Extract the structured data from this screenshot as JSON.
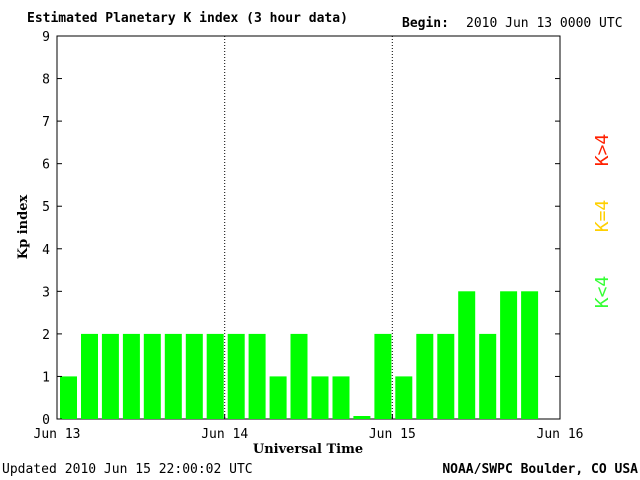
{
  "header": {
    "title": "Estimated Planetary K index (3 hour data)",
    "begin_label": "Begin:",
    "begin_value": "2010 Jun 13 0000 UTC"
  },
  "footer": {
    "updated_label": "Updated",
    "updated_value": "2010 Jun 15 22:00:02 UTC",
    "credit": "NOAA/SWPC Boulder, CO USA"
  },
  "legend": {
    "items": [
      {
        "label": "K>4",
        "color": "#ff2000"
      },
      {
        "label": "K=4",
        "color": "#ffd000"
      },
      {
        "label": "K<4",
        "color": "#33ff33"
      }
    ]
  },
  "chart_data": {
    "type": "bar",
    "title": "Estimated Planetary K index (3 hour data)",
    "xlabel": "Universal Time",
    "ylabel": "Kp index",
    "ylim": [
      0,
      9
    ],
    "yticks": [
      "0",
      "1",
      "2",
      "3",
      "4",
      "5",
      "6",
      "7",
      "8",
      "9"
    ],
    "xticks": [
      "Jun 13",
      "Jun 14",
      "Jun 15",
      "Jun 16"
    ],
    "interval_hours": 3,
    "grid": false,
    "day_separators": true,
    "bar_color": "#00ff00",
    "values": [
      1,
      2,
      2,
      2,
      2,
      2,
      2,
      2,
      2,
      2,
      1,
      2,
      1,
      1,
      0.07,
      2,
      1,
      2,
      2,
      3,
      2,
      3,
      3
    ]
  }
}
